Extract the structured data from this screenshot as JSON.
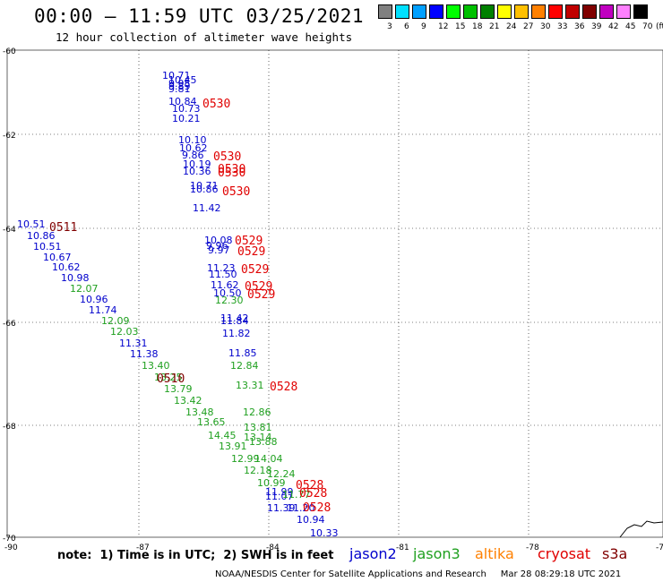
{
  "header": {
    "title": "00:00 – 11:59 UTC 03/25/2021",
    "subtitle": "12 hour collection of altimeter wave heights"
  },
  "legend": {
    "unit_label": "(ft)",
    "ticks": [
      "3",
      "6",
      "9",
      "12",
      "15",
      "18",
      "21",
      "24",
      "27",
      "30",
      "33",
      "36",
      "39",
      "42",
      "45",
      "70"
    ],
    "colors": [
      "#808080",
      "#00e0ff",
      "#00a0ff",
      "#0000ff",
      "#00ff00",
      "#00c000",
      "#008000",
      "#ffff00",
      "#ffc000",
      "#ff8000",
      "#ff0000",
      "#c00000",
      "#800000",
      "#c000c0",
      "#ff80ff",
      "#000000"
    ]
  },
  "map": {
    "lat_labels": [
      "-60",
      "-62",
      "-64",
      "-66",
      "-68",
      "-70"
    ],
    "lon_labels": [
      "-90",
      "-87",
      "-84",
      "-81",
      "-78",
      "-75"
    ],
    "grid_color": "#000000",
    "satellite_colors": {
      "jason2": "#0000cc",
      "jason3": "#20a020",
      "altika": "#ff8000",
      "cryosat": "#e00000",
      "s3a": "#800000"
    },
    "time_labels": [
      {
        "text": "0530",
        "sat": "cryosat"
      },
      {
        "text": "0530",
        "sat": "cryosat"
      },
      {
        "text": "0530",
        "sat": "cryosat"
      },
      {
        "text": "0530",
        "sat": "cryosat"
      },
      {
        "text": "0530",
        "sat": "cryosat"
      },
      {
        "text": "0511",
        "sat": "s3a"
      },
      {
        "text": "0529",
        "sat": "cryosat"
      },
      {
        "text": "0529",
        "sat": "cryosat"
      },
      {
        "text": "0529",
        "sat": "cryosat"
      },
      {
        "text": "0529",
        "sat": "cryosat"
      },
      {
        "text": "0529",
        "sat": "cryosat"
      },
      {
        "text": "0510",
        "sat": "s3a"
      },
      {
        "text": "0528",
        "sat": "cryosat"
      },
      {
        "text": "0528",
        "sat": "cryosat"
      },
      {
        "text": "0528",
        "sat": "cryosat"
      },
      {
        "text": "0528",
        "sat": "cryosat"
      }
    ],
    "wave_values": [
      {
        "v": "10.71",
        "sat": "jason2"
      },
      {
        "v": "10.45",
        "sat": "jason2"
      },
      {
        "v": "9.95",
        "sat": "jason2"
      },
      {
        "v": "9.89",
        "sat": "jason2"
      },
      {
        "v": "9.81",
        "sat": "jason2"
      },
      {
        "v": "10.84",
        "sat": "jason2"
      },
      {
        "v": "10.73",
        "sat": "jason2"
      },
      {
        "v": "10.21",
        "sat": "jason2"
      },
      {
        "v": "10.10",
        "sat": "jason2"
      },
      {
        "v": "10.62",
        "sat": "jason2"
      },
      {
        "v": "9.86",
        "sat": "jason2"
      },
      {
        "v": "10.19",
        "sat": "jason2"
      },
      {
        "v": "10.36",
        "sat": "jason2"
      },
      {
        "v": "10.86",
        "sat": "jason2"
      },
      {
        "v": "10.71",
        "sat": "jason2"
      },
      {
        "v": "11.42",
        "sat": "jason2"
      },
      {
        "v": "10.51",
        "sat": "jason2"
      },
      {
        "v": "10.86",
        "sat": "jason2"
      },
      {
        "v": "10.51",
        "sat": "jason2"
      },
      {
        "v": "10.67",
        "sat": "jason2"
      },
      {
        "v": "10.62",
        "sat": "jason2"
      },
      {
        "v": "10.98",
        "sat": "jason2"
      },
      {
        "v": "12.07",
        "sat": "jason3"
      },
      {
        "v": "10.96",
        "sat": "jason2"
      },
      {
        "v": "11.74",
        "sat": "jason2"
      },
      {
        "v": "12.09",
        "sat": "jason3"
      },
      {
        "v": "12.03",
        "sat": "jason3"
      },
      {
        "v": "11.31",
        "sat": "jason2"
      },
      {
        "v": "11.38",
        "sat": "jason2"
      },
      {
        "v": "13.40",
        "sat": "jason3"
      },
      {
        "v": "13.25",
        "sat": "jason3"
      },
      {
        "v": "13.79",
        "sat": "jason3"
      },
      {
        "v": "13.42",
        "sat": "jason3"
      },
      {
        "v": "13.48",
        "sat": "jason3"
      },
      {
        "v": "13.65",
        "sat": "jason3"
      },
      {
        "v": "14.45",
        "sat": "jason3"
      },
      {
        "v": "13.91",
        "sat": "jason3"
      },
      {
        "v": "12.99",
        "sat": "jason3"
      },
      {
        "v": "14.04",
        "sat": "jason3"
      },
      {
        "v": "12.18",
        "sat": "jason3"
      },
      {
        "v": "12.24",
        "sat": "jason3"
      },
      {
        "v": "10.99",
        "sat": "jason3"
      },
      {
        "v": "10.08",
        "sat": "jason2"
      },
      {
        "v": "9.96",
        "sat": "jason2"
      },
      {
        "v": "9.97",
        "sat": "jason2"
      },
      {
        "v": "11.23",
        "sat": "jason2"
      },
      {
        "v": "11.50",
        "sat": "jason2"
      },
      {
        "v": "11.62",
        "sat": "jason2"
      },
      {
        "v": "10.50",
        "sat": "jason2"
      },
      {
        "v": "12.30",
        "sat": "jason3"
      },
      {
        "v": "11.42",
        "sat": "jason2"
      },
      {
        "v": "11.84",
        "sat": "jason2"
      },
      {
        "v": "11.82",
        "sat": "jason2"
      },
      {
        "v": "11.85",
        "sat": "jason2"
      },
      {
        "v": "12.84",
        "sat": "jason3"
      },
      {
        "v": "13.31",
        "sat": "jason3"
      },
      {
        "v": "12.86",
        "sat": "jason3"
      },
      {
        "v": "13.81",
        "sat": "jason3"
      },
      {
        "v": "13.14",
        "sat": "jason3"
      },
      {
        "v": "13.88",
        "sat": "jason3"
      },
      {
        "v": "11.99",
        "sat": "jason2"
      },
      {
        "v": "11.07",
        "sat": "jason2"
      },
      {
        "v": "11.77",
        "sat": "jason3"
      },
      {
        "v": "11.39",
        "sat": "jason2"
      },
      {
        "v": "11.20",
        "sat": "jason2"
      },
      {
        "v": "10.94",
        "sat": "jason2"
      },
      {
        "v": "10.33",
        "sat": "jason2"
      }
    ]
  },
  "satellites": [
    {
      "name": "jason2",
      "color": "#0000cc"
    },
    {
      "name": "jason3",
      "color": "#20a020"
    },
    {
      "name": "altika",
      "color": "#ff8000"
    },
    {
      "name": "cryosat",
      "color": "#e00000"
    },
    {
      "name": "s3a",
      "color": "#800000"
    }
  ],
  "footer": {
    "note": "note:  1) Time is in UTC;  2) SWH is in feet",
    "credit": "NOAA/NESDIS Center for Satellite Applications and Research     Mar 28 08:29:18 UTC 2021"
  }
}
